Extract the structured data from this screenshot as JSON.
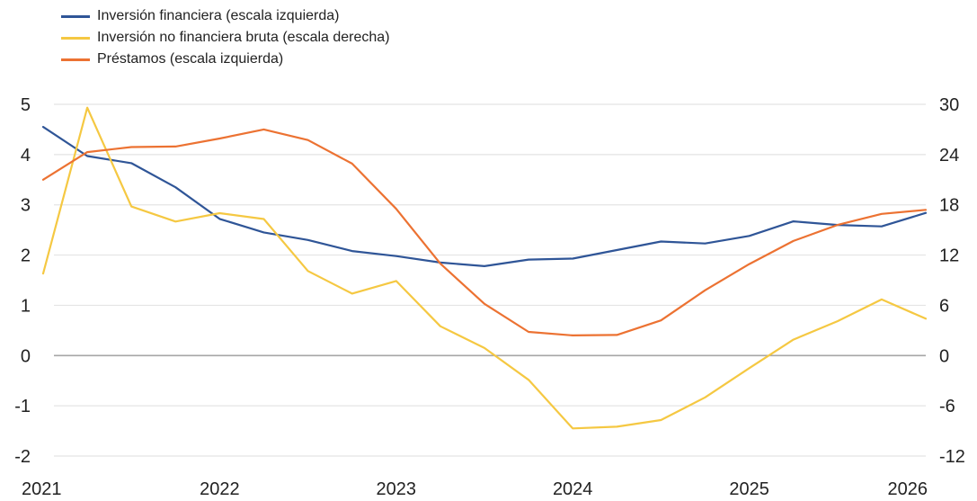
{
  "chart_data": {
    "type": "line",
    "x_ticks": [
      "2021",
      "2022",
      "2023",
      "2024",
      "2025",
      "2026"
    ],
    "x_range": [
      2021,
      2026
    ],
    "left_axis": {
      "range": [
        -2,
        5
      ],
      "ticks": [
        "5",
        "4",
        "3",
        "2",
        "1",
        "0",
        "-1",
        "-2"
      ],
      "values": [
        5,
        4,
        3,
        2,
        1,
        0,
        -1,
        -2
      ]
    },
    "right_axis": {
      "range": [
        -12,
        30
      ],
      "ticks": [
        "30",
        "24",
        "18",
        "12",
        "6",
        "0",
        "-6",
        "-12"
      ],
      "values": [
        30,
        24,
        18,
        12,
        6,
        0,
        -6,
        -12
      ]
    },
    "grid": true,
    "legend_position": "top-left",
    "series": [
      {
        "name": "Inversión financiera (escala izquierda)",
        "axis": "left",
        "color": "#2f5597",
        "x": [
          2021.0,
          2021.25,
          2021.5,
          2021.75,
          2022.0,
          2022.25,
          2022.5,
          2022.75,
          2023.0,
          2023.25,
          2023.5,
          2023.75,
          2024.0,
          2024.25,
          2024.5,
          2024.75,
          2025.0,
          2025.25,
          2025.5,
          2025.75,
          2026.0
        ],
        "y": [
          4.55,
          3.97,
          3.83,
          3.35,
          2.72,
          2.45,
          2.3,
          2.08,
          1.98,
          1.85,
          1.78,
          1.91,
          1.93,
          2.1,
          2.27,
          2.23,
          2.38,
          2.67,
          2.6,
          2.57,
          2.84
        ]
      },
      {
        "name": "Inversión no financiera bruta (escala derecha)",
        "axis": "right",
        "color": "#f5c842",
        "x": [
          2021.0,
          2021.25,
          2021.5,
          2021.75,
          2022.0,
          2022.25,
          2022.5,
          2022.75,
          2023.0,
          2023.25,
          2023.5,
          2023.75,
          2024.0,
          2024.25,
          2024.5,
          2024.75,
          2025.0,
          2025.25,
          2025.5,
          2025.75,
          2026.0
        ],
        "y": [
          9.8,
          29.6,
          17.8,
          16.0,
          17.0,
          16.3,
          10.1,
          7.4,
          8.9,
          3.5,
          0.9,
          -2.9,
          -8.7,
          -8.5,
          -7.7,
          -5.0,
          -1.5,
          1.9,
          4.1,
          6.7,
          4.4
        ]
      },
      {
        "name": "Préstamos (escala izquierda)",
        "axis": "left",
        "color": "#ec7232",
        "x": [
          2021.0,
          2021.25,
          2021.5,
          2021.75,
          2022.0,
          2022.25,
          2022.5,
          2022.75,
          2023.0,
          2023.25,
          2023.5,
          2023.75,
          2024.0,
          2024.25,
          2024.5,
          2024.75,
          2025.0,
          2025.25,
          2025.5,
          2025.75,
          2026.0
        ],
        "y": [
          3.5,
          4.05,
          4.15,
          4.16,
          4.32,
          4.5,
          4.29,
          3.82,
          2.92,
          1.83,
          1.03,
          0.47,
          0.4,
          0.41,
          0.7,
          1.3,
          1.82,
          2.28,
          2.6,
          2.82,
          2.9
        ]
      }
    ]
  }
}
